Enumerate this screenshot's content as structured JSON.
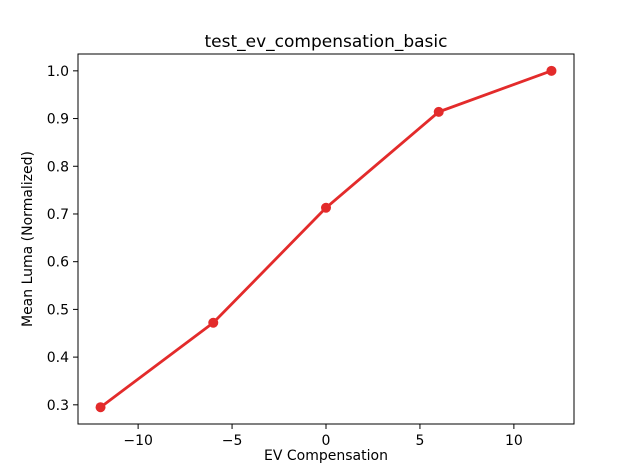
{
  "figure": {
    "background_color": "#ffffff"
  },
  "chart_data": {
    "type": "line",
    "title": "test_ev_compensation_basic",
    "xlabel": "EV Compensation",
    "ylabel": "Mean Luma (Normalized)",
    "x": [
      -12,
      -6,
      0,
      6,
      12
    ],
    "y": [
      0.295,
      0.472,
      0.713,
      0.914,
      1.0
    ],
    "series": [
      {
        "name": "mean-luma-line",
        "color": "#e32b2b",
        "marker": "o",
        "values": [
          0.295,
          0.472,
          0.713,
          0.914,
          1.0
        ]
      }
    ],
    "xlim": [
      -13.2,
      13.2
    ],
    "ylim": [
      0.2598,
      1.0353
    ],
    "xticks": {
      "values": [
        -10,
        -5,
        0,
        5,
        10
      ],
      "labels": [
        "−10",
        "−5",
        "0",
        "5",
        "10"
      ]
    },
    "yticks": {
      "values": [
        0.3,
        0.4,
        0.5,
        0.6,
        0.7,
        0.8,
        0.9,
        1.0
      ],
      "labels": [
        "0.3",
        "0.4",
        "0.5",
        "0.6",
        "0.7",
        "0.8",
        "0.9",
        "1.0"
      ]
    },
    "grid": false,
    "legend": null,
    "axis_color": "#000000",
    "text_color": "#000000"
  }
}
